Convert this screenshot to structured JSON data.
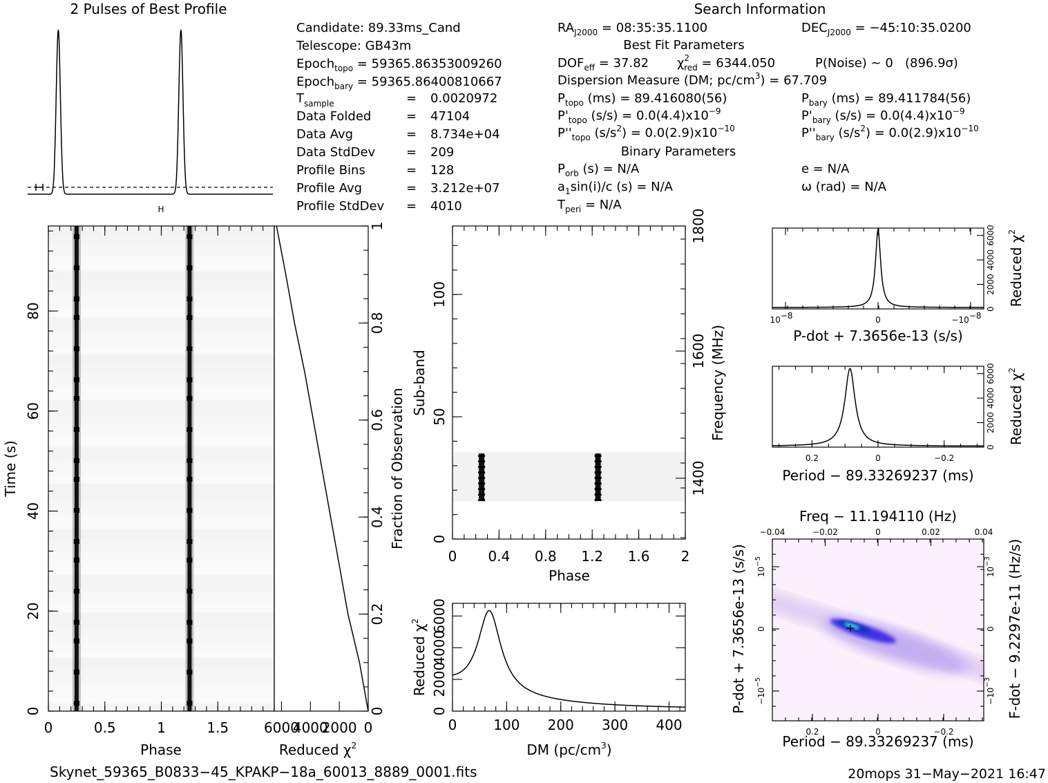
{
  "title_profile": "2 Pulses of Best Profile",
  "title_search": "Search Information",
  "info": {
    "candidate": "Candidate:  89.33ms_Cand",
    "telescope": "Telescope:  GB43m",
    "epoch_topo_label": "Epoch",
    "epoch_topo_sub": "topo",
    "epoch_topo_value": " = 59365.86353009260",
    "epoch_bary_label": "Epoch",
    "epoch_bary_sub": "bary",
    "epoch_bary_value": " = 59365.86400810667",
    "tsample_label": "T",
    "tsample_sub": "sample",
    "tsample_eq": "=",
    "tsample_value": "0.0020972",
    "rows": [
      {
        "label": "Data Folded",
        "eq": "=",
        "value": "47104"
      },
      {
        "label": "Data Avg",
        "eq": "=",
        "value": "8.734e+04"
      },
      {
        "label": "Data StdDev",
        "eq": "=",
        "value": "209"
      },
      {
        "label": "Profile Bins",
        "eq": "=",
        "value": "128"
      },
      {
        "label": "Profile Avg",
        "eq": "=",
        "value": "3.212e+07"
      },
      {
        "label": "Profile StdDev",
        "eq": "=",
        "value": "4010"
      }
    ],
    "ra_label": "RA",
    "ra_sub": "J2000",
    "ra_value": " = 08:35:35.1100",
    "dec_label": "DEC",
    "dec_sub": "J2000",
    "dec_value": " = −45:10:35.0200",
    "best_fit_title": "Best Fit Parameters",
    "dof_label": "DOF",
    "dof_sub": "eff",
    "dof_value": " = 37.82",
    "chi_label": "χ",
    "chi_sup": "2",
    "chi_sub": "red",
    "chi_value": " = 6344.050",
    "pnoise": "P(Noise) ~ 0   (896.9σ)",
    "dm_text": "Dispersion Measure (DM; pc/cm",
    "dm_sup": "3",
    "dm_value": ") = 67.709",
    "ptopo_label": "P",
    "ptopo_sub": "topo",
    "ptopo_value": " (ms) =  89.416080(56)",
    "pbary_label": "P",
    "pbary_sub": "bary",
    "pbary_value": " (ms) =  89.411784(56)",
    "pdtopo_label": "P'",
    "pdtopo_sub": "topo",
    "pdtopo_value": " (s/s) = 0.0(4.4)x10",
    "pdtopo_exp": "−9",
    "pdbary_label": "P'",
    "pdbary_sub": "bary",
    "pdbary_value": " (s/s) = 0.0(4.4)x10",
    "pdbary_exp": "−9",
    "pddtopo_label": "P''",
    "pddtopo_sub": "topo",
    "pddtopo_value": " (s/s",
    "pddtopo_sup2": "2",
    "pddtopo_value2": ") = 0.0(2.9)x10",
    "pddtopo_exp": "−10",
    "pddbary_label": "P''",
    "pddbary_sub": "bary",
    "pddbary_value": " (s/s",
    "pddbary_sup2": "2",
    "pddbary_value2": ") = 0.0(2.9)x10",
    "pddbary_exp": "−10",
    "binary_title": "Binary Parameters",
    "porb_label": "P",
    "porb_sub": "orb",
    "porb_value": " (s) = N/A",
    "e_text": "e = N/A",
    "a1_label": "a",
    "a1_sub": "1",
    "a1_value": "sin(i)/c (s) = N/A",
    "omega_text": "ω (rad) = N/A",
    "tperi_label": "T",
    "tperi_sub": "peri",
    "tperi_value": " = N/A"
  },
  "footer_file": "Skynet_59365_B0833−45_KPAKP−18a_60013_8889_0001.fits",
  "footer_stamp": "20mops 31−May−2021 16:47",
  "colors": {
    "ink": "#000000",
    "cmap_low": "#ffffff",
    "cmap_mid": "#2030e0",
    "cmap_high": "#10e0c0"
  },
  "chart_data": [
    {
      "type": "line",
      "id": "profile",
      "title": "2 Pulses of Best Profile",
      "x_range": [
        0,
        2
      ],
      "pulse_peaks_phase": [
        0.25,
        1.25
      ],
      "baseline_dashed": true
    },
    {
      "type": "heatmap",
      "id": "time_phase",
      "xlabel": "Phase",
      "ylabel": "Time (s)",
      "xlim": [
        0,
        2
      ],
      "ylim": [
        0,
        97
      ],
      "xticks": [
        "0",
        "0.5",
        "1",
        "1.5"
      ],
      "yticks": [
        "0",
        "20",
        "40",
        "60",
        "80"
      ],
      "pulse_phase": [
        0.25,
        1.25
      ]
    },
    {
      "type": "line",
      "id": "time_chi",
      "xlabel": "Reduced χ",
      "xlabel_sup": "2",
      "ylabel_right": "Fraction of Observation",
      "xlim": [
        6500,
        0
      ],
      "ylim": [
        0,
        1
      ],
      "xticks": [
        "6000",
        "4000",
        "2000",
        "0"
      ],
      "yticks": [
        "0",
        "0.2",
        "0.4",
        "0.6",
        "0.8",
        "1"
      ],
      "points": [
        [
          0,
          0
        ],
        [
          600,
          0.1
        ],
        [
          1400,
          0.2
        ],
        [
          2000,
          0.3
        ],
        [
          2600,
          0.4
        ],
        [
          3200,
          0.5
        ],
        [
          3800,
          0.6
        ],
        [
          4400,
          0.7
        ],
        [
          5100,
          0.8
        ],
        [
          5700,
          0.9
        ],
        [
          6344,
          1.0
        ]
      ]
    },
    {
      "type": "heatmap",
      "id": "subband_phase",
      "xlabel": "Phase",
      "ylabel": "Sub-band",
      "ylabel_right": "Frequency (MHz)",
      "xlim": [
        0,
        2
      ],
      "ylim": [
        0,
        128
      ],
      "xticks": [
        "0",
        "0.4",
        "0.8",
        "1.2",
        "1.6",
        "2"
      ],
      "yticks": [
        "0",
        "50",
        "100"
      ],
      "freq_ticks": [
        "1400",
        "1600",
        "1800"
      ],
      "signal_subbands": [
        16,
        35
      ],
      "pulse_phase": [
        0.25,
        1.25
      ]
    },
    {
      "type": "line",
      "id": "dm_chi",
      "xlabel": "DM (pc/cm",
      "xlabel_sup": "3",
      "ylabel": "Reduced χ",
      "ylabel_sup": "2",
      "xlim": [
        0,
        430
      ],
      "ylim": [
        0,
        6800
      ],
      "xticks": [
        "0",
        "100",
        "200",
        "300",
        "400"
      ],
      "yticks": [
        "0",
        "2000",
        "4000",
        "6000"
      ],
      "peak_dm": 67.709,
      "peak_chi": 6344,
      "baseline_chi": 1700
    },
    {
      "type": "line",
      "id": "pdot_chi",
      "xlabel": "P-dot + 7.3656e-13 (s/s)",
      "ylabel_right": "Reduced χ",
      "ylabel_sup": "2",
      "xticks": [
        "10",
        "0",
        "−10"
      ],
      "xticks_exp": [
        "−8",
        "",
        "−8"
      ],
      "yticks": [
        "0",
        "2000",
        "4000",
        "6000"
      ],
      "peak": 6344
    },
    {
      "type": "line",
      "id": "period_chi",
      "xlabel": "Period − 89.33269237 (ms)",
      "ylabel_right": "Reduced χ",
      "ylabel_sup": "2",
      "xlim": [
        0.32,
        -0.32
      ],
      "xticks": [
        "0.2",
        "0",
        "−0.2"
      ],
      "yticks": [
        "0",
        "2000",
        "4000",
        "6000"
      ],
      "peak_x": 0.085,
      "peak": 6344
    },
    {
      "type": "heatmap",
      "id": "p_pdot",
      "title_top": "Freq − 11.194110 (Hz)",
      "xlabel": "Period − 89.33269237 (ms)",
      "ylabel": "P-dot + 7.3656e-13 (s/s)",
      "ylabel_right": "F-dot − 9.2297e-11 (Hz/s)",
      "xticks": [
        "0.2",
        "0",
        "−0.2"
      ],
      "top_ticks": [
        "−0.04",
        "−0.02",
        "0",
        "0.02",
        "0.04"
      ],
      "left_ticks": [
        "10",
        "0",
        "−10"
      ],
      "left_ticks_exp": [
        "−5",
        "",
        "−5"
      ],
      "right_ticks": [
        "10",
        "0",
        "−10"
      ],
      "right_ticks_exp": [
        "−3",
        "",
        "−3"
      ],
      "peak_period": 0.085
    }
  ]
}
